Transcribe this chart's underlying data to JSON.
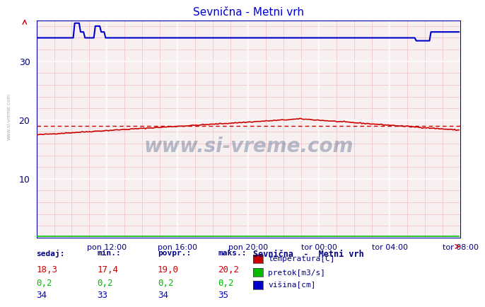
{
  "title": "Sevnična - Metni vrh",
  "bg_color": "#ffffff",
  "plot_bg_color": "#f8f0f0",
  "major_grid_color": "#ffffff",
  "minor_grid_color": "#f0c8c8",
  "xlabel_ticks": [
    "pon 12:00",
    "pon 16:00",
    "pon 20:00",
    "tor 00:00",
    "tor 04:00",
    "tor 08:00"
  ],
  "xlim": [
    0,
    288
  ],
  "ylim": [
    0,
    37
  ],
  "yticks": [
    10,
    20,
    30
  ],
  "temp_avg": 19.0,
  "temp_color": "#cc0000",
  "pretok_color": "#00bb00",
  "visina_color": "#0000cc",
  "watermark": "www.si-vreme.com",
  "watermark_color": "#1a3a6b",
  "legend_title": "Sevnična  -  Metni vrh",
  "legend_items": [
    {
      "label": "temperatura[C]",
      "color": "#cc0000"
    },
    {
      "label": "pretok[m3/s]",
      "color": "#00bb00"
    },
    {
      "label": "višina[cm]",
      "color": "#0000cc"
    }
  ],
  "table_headers": [
    "sedaj:",
    "min.:",
    "povpr.:",
    "maks.:"
  ],
  "table_row_colors": [
    "#cc0000",
    "#00bb00",
    "#0000cc"
  ],
  "table_values": [
    [
      "18,3",
      "17,4",
      "19,0",
      "20,2"
    ],
    [
      "0,2",
      "0,2",
      "0,2",
      "0,2"
    ],
    [
      "34",
      "33",
      "34",
      "35"
    ]
  ],
  "n_points": 288
}
